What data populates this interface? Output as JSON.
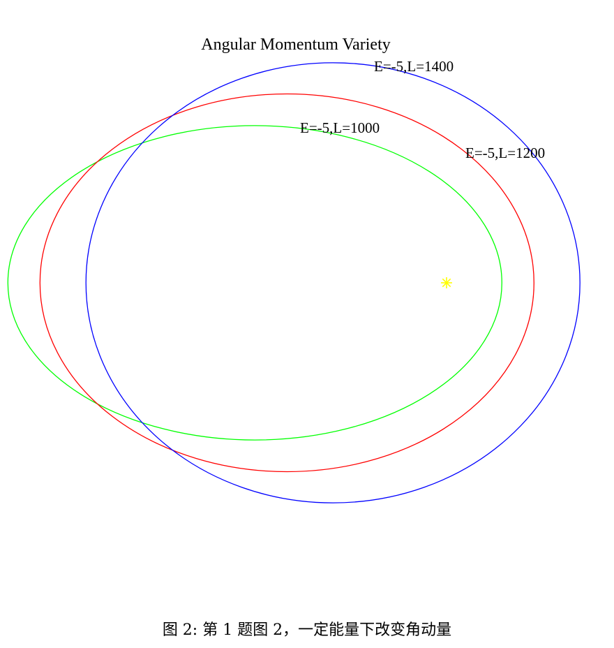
{
  "chart_data": {
    "type": "line",
    "title": "Angular Momentum Variety",
    "xlabel": "",
    "ylabel": "",
    "grid": false,
    "axes_visible": false,
    "xlim": [
      -1.08,
      0.17
    ],
    "ylim": [
      -0.6,
      0.42
    ],
    "focus": {
      "x": 0,
      "y": 0,
      "marker": "asterisk",
      "color": "#ffff00"
    },
    "series": [
      {
        "label": "E=-5,L=1000",
        "E": -5,
        "L": 1000,
        "color": "#00ff00",
        "a": 0.5,
        "b": 0.318,
        "center_x": -0.388
      },
      {
        "label": "E=-5,L=1200",
        "E": -5,
        "L": 1200,
        "color": "#ff0000",
        "a": 0.5,
        "b": 0.382,
        "center_x": -0.323
      },
      {
        "label": "E=-5,L=1400",
        "E": -5,
        "L": 1400,
        "color": "#0000ff",
        "a": 0.5,
        "b": 0.445,
        "center_x": -0.23
      }
    ]
  },
  "caption": "图 2: 第 1 题图 2，一定能量下改变角动量"
}
